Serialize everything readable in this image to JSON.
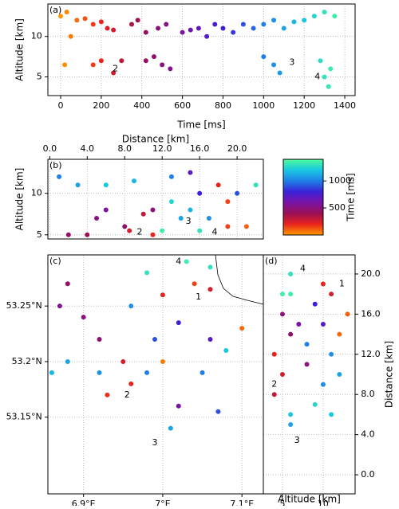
{
  "chart_data": [
    {
      "type": "scatter",
      "panel_label": "(a)",
      "xlabel": "Time [ms]",
      "ylabel": "Altitude [km]",
      "xlim": [
        -63,
        1451
      ],
      "ylim": [
        2.7,
        14
      ],
      "xticks": [
        0,
        200,
        400,
        600,
        800,
        1000,
        1200,
        1400
      ],
      "yticks": [
        5,
        10
      ],
      "grid": true,
      "x": [
        0,
        20,
        50,
        80,
        120,
        160,
        200,
        230,
        260,
        30,
        160,
        200,
        260,
        300,
        350,
        380,
        420,
        460,
        500,
        540,
        420,
        480,
        520,
        600,
        640,
        680,
        720,
        760,
        800,
        850,
        900,
        950,
        1000,
        1050,
        1100,
        1150,
        1200,
        1250,
        1300,
        1000,
        1050,
        1080,
        1280,
        1300,
        1320,
        1330,
        1350
      ],
      "y": [
        12.5,
        6.5,
        10,
        12,
        12.2,
        11.5,
        11.8,
        11,
        10.8,
        13,
        6.5,
        7,
        5.5,
        7,
        11.5,
        12,
        7,
        7.5,
        6.5,
        6,
        10.5,
        11,
        11.5,
        10.5,
        10.8,
        11,
        10,
        11.5,
        11,
        10.5,
        11.5,
        11,
        11.5,
        12,
        11,
        11.8,
        12,
        12.5,
        13,
        7.5,
        6.5,
        5.5,
        7,
        5,
        3.8,
        6,
        12.5
      ],
      "annotations": [
        {
          "text": "2",
          "x": 270,
          "y": 6
        },
        {
          "text": "3",
          "x": 1140,
          "y": 6.8
        },
        {
          "text": "4",
          "x": 1265,
          "y": 5
        }
      ]
    },
    {
      "type": "scatter",
      "panel_label": "(b)",
      "xlabel": "Distance [km]",
      "ylabel": "Altitude [km]",
      "xlim": [
        -0.2,
        22.8
      ],
      "ylim": [
        4.5,
        14.1
      ],
      "xticks": [
        {
          "value": 0,
          "label": "0.0"
        },
        {
          "value": 4,
          "label": "4.0"
        },
        {
          "value": 8,
          "label": "8.0"
        },
        {
          "value": 12,
          "label": "12.0"
        },
        {
          "value": 16,
          "label": "16.0"
        },
        {
          "value": 20,
          "label": "20.0"
        }
      ],
      "yticks": [
        5,
        10
      ],
      "grid": true,
      "x": [
        3,
        6,
        9,
        5,
        2,
        4,
        8,
        11,
        8.5,
        10,
        12,
        14,
        15,
        16,
        19,
        21,
        13,
        15,
        16,
        18,
        19,
        20,
        22,
        11,
        13,
        17,
        6,
        1
      ],
      "y": [
        11,
        11,
        11.5,
        7,
        5,
        5,
        6,
        5,
        5.5,
        7.5,
        5.5,
        7,
        8,
        5.5,
        6,
        6,
        12,
        12.5,
        10,
        11,
        9,
        10,
        11,
        8,
        9,
        7,
        8,
        12
      ],
      "c": [
        1100,
        1200,
        1150,
        500,
        450,
        400,
        450,
        200,
        250,
        300,
        1350,
        1100,
        1150,
        1300,
        150,
        100,
        1000,
        700,
        800,
        200,
        150,
        900,
        1300,
        500,
        1250,
        1050,
        600,
        1000
      ],
      "annotations": [
        {
          "text": "2",
          "x": 9.6,
          "y": 5.3
        },
        {
          "text": "3",
          "x": 14.8,
          "y": 6.6
        },
        {
          "text": "4",
          "x": 17.6,
          "y": 5.3
        }
      ],
      "colorbar": {
        "label": "Time [ms]",
        "lim": [
          0,
          1400
        ],
        "ticks": [
          500,
          1000
        ],
        "colors": [
          "#ff9a00",
          "#e8231d",
          "#9a0f55",
          "#7a13a6",
          "#3a22d8",
          "#1e7fe8",
          "#19c8e0",
          "#4dfa9a"
        ]
      }
    },
    {
      "type": "scatter",
      "panel_label": "(c)",
      "xlim": [
        6.855,
        7.127
      ],
      "ylim": [
        53.081,
        53.296
      ],
      "xticks": [
        {
          "value": 6.9,
          "label": "6.9°E"
        },
        {
          "value": 7,
          "label": "7°E"
        },
        {
          "value": 7.1,
          "label": "7.1°E"
        }
      ],
      "yticks": [
        {
          "value": 53.15,
          "label": "53.15°N"
        },
        {
          "value": 53.2,
          "label": "53.2°N"
        },
        {
          "value": 53.25,
          "label": "53.25°N"
        }
      ],
      "grid": true,
      "x": [
        6.88,
        6.9,
        6.92,
        6.87,
        6.88,
        6.92,
        6.86,
        6.95,
        6.96,
        6.93,
        6.98,
        6.96,
        6.98,
        7.03,
        7.06,
        7.0,
        7.04,
        7.06,
        7.02,
        7.06,
        7.1,
        7.08,
        7.05,
        7.02,
        7.07,
        7.01,
        7.0,
        6.99
      ],
      "y": [
        53.27,
        53.24,
        53.22,
        53.25,
        53.2,
        53.19,
        53.19,
        53.2,
        53.18,
        53.17,
        53.19,
        53.25,
        53.28,
        53.29,
        53.285,
        53.26,
        53.27,
        53.265,
        53.235,
        53.22,
        53.23,
        53.21,
        53.19,
        53.16,
        53.155,
        53.14,
        53.2,
        53.22
      ],
      "c": [
        450,
        500,
        480,
        550,
        1100,
        1050,
        1150,
        250,
        200,
        180,
        1000,
        1050,
        1300,
        1350,
        1300,
        200,
        150,
        250,
        800,
        700,
        80,
        1200,
        1000,
        600,
        900,
        1100,
        50,
        900
      ],
      "annotations": [
        {
          "text": "4",
          "x": 7.02,
          "y": 53.29
        },
        {
          "text": "1",
          "x": 7.045,
          "y": 53.258
        },
        {
          "text": "2",
          "x": 6.955,
          "y": 53.17
        },
        {
          "text": "3",
          "x": 6.99,
          "y": 53.127
        }
      ]
    },
    {
      "type": "scatter",
      "panel_label": "(d)",
      "xlabel": "Altitude [km]",
      "ylabel": "Distance [km]",
      "xlim": [
        2.65,
        13.93
      ],
      "ylim": [
        -1.9,
        21.9
      ],
      "xticks": [
        5,
        10
      ],
      "yticks": [
        {
          "value": 0,
          "label": "0.0"
        },
        {
          "value": 4,
          "label": "4.0"
        },
        {
          "value": 8,
          "label": "8.0"
        },
        {
          "value": 12,
          "label": "12.0"
        },
        {
          "value": 16,
          "label": "16.0"
        },
        {
          "value": 20,
          "label": "20.0"
        }
      ],
      "grid": true,
      "x": [
        6,
        6,
        5,
        6,
        4,
        5,
        4,
        10,
        11,
        9,
        10,
        8,
        11,
        12,
        10,
        6,
        6,
        9,
        12,
        8,
        5,
        11,
        7,
        13
      ],
      "y": [
        20,
        18,
        16,
        14,
        12,
        10,
        8,
        19,
        18,
        17,
        15,
        13,
        12,
        10,
        9,
        6,
        5,
        7,
        14,
        11,
        18,
        6,
        15,
        16
      ],
      "c": [
        1300,
        1350,
        500,
        450,
        200,
        250,
        300,
        200,
        250,
        800,
        700,
        1000,
        1050,
        1100,
        1050,
        1200,
        1100,
        1250,
        80,
        500,
        1350,
        1200,
        600,
        100
      ],
      "annotations": [
        {
          "text": "4",
          "x": 7.5,
          "y": 20.5
        },
        {
          "text": "1",
          "x": 12.3,
          "y": 19
        },
        {
          "text": "2",
          "x": 4,
          "y": 9
        },
        {
          "text": "3",
          "x": 6.8,
          "y": 3.4
        }
      ]
    }
  ]
}
